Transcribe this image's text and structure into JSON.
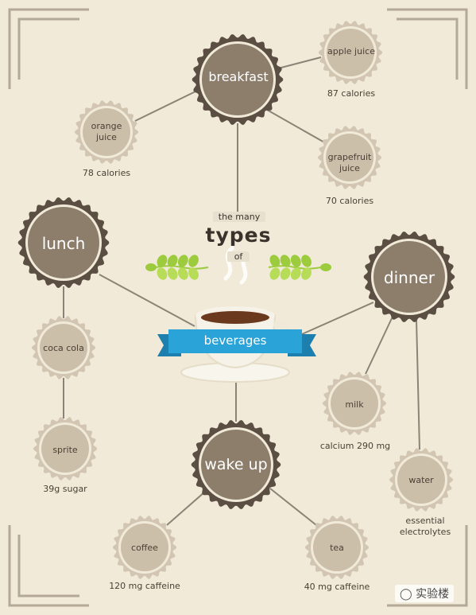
{
  "colors": {
    "background": "#f1ead8",
    "line": "#8a8478",
    "big_ring": "#5b4e42",
    "big_fill": "#8d7e6c",
    "small_ring": "#d2c6b2",
    "small_fill": "#ccbfa9",
    "ribbon": "#2aa3d8",
    "ribbon_dark": "#1c7fae",
    "leaf": "#9ccb3e",
    "cup": "#f6f2e7",
    "coffee": "#6b3a1e"
  },
  "center": {
    "line1": "the many",
    "line2": "types",
    "line3": "of",
    "ribbon": "beverages"
  },
  "meals": [
    {
      "id": "breakfast",
      "label": "breakfast"
    },
    {
      "id": "lunch",
      "label": "lunch"
    },
    {
      "id": "dinner",
      "label": "dinner"
    },
    {
      "id": "wakeup",
      "label": "wake up"
    }
  ],
  "drinks": [
    {
      "id": "applejuice",
      "label": "apple juice",
      "detail": "87 calories",
      "meal": "breakfast"
    },
    {
      "id": "orangejuice",
      "label": "orange juice",
      "detail": "78 calories",
      "meal": "breakfast"
    },
    {
      "id": "grapefruitjuice",
      "label": "grapefruit juice",
      "detail": "70 calories",
      "meal": "breakfast"
    },
    {
      "id": "cocacola",
      "label": "coca cola",
      "detail": "",
      "meal": "lunch"
    },
    {
      "id": "sprite",
      "label": "sprite",
      "detail": "39g sugar",
      "meal": "lunch"
    },
    {
      "id": "milk",
      "label": "milk",
      "detail": "calcium 290 mg",
      "meal": "dinner"
    },
    {
      "id": "water",
      "label": "water",
      "detail": "essential electrolytes",
      "meal": "dinner"
    },
    {
      "id": "coffee",
      "label": "coffee",
      "detail": "120 mg caffeine",
      "meal": "wakeup"
    },
    {
      "id": "tea",
      "label": "tea",
      "detail": "40 mg caffeine",
      "meal": "wakeup"
    }
  ],
  "watermark": "实验楼"
}
